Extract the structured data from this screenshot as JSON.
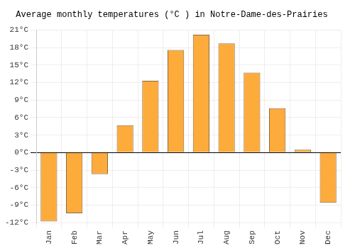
{
  "chart_data": {
    "type": "bar",
    "title": "Average monthly temperatures (°C ) in Notre-Dame-des-Prairies",
    "categories": [
      "Jan",
      "Feb",
      "Mar",
      "Apr",
      "May",
      "Jun",
      "Jul",
      "Aug",
      "Sep",
      "Oct",
      "Nov",
      "Dec"
    ],
    "values": [
      -11.8,
      -10.4,
      -3.7,
      4.7,
      12.3,
      17.6,
      20.2,
      18.7,
      13.7,
      7.6,
      0.5,
      -8.6
    ],
    "color": "#fdab3b",
    "ylim": [
      -12,
      21
    ],
    "yticks": [
      {
        "value": -12,
        "label": "-12°C"
      },
      {
        "value": -9,
        "label": "-9°C"
      },
      {
        "value": -6,
        "label": "-6°C"
      },
      {
        "value": -3,
        "label": "-3°C"
      },
      {
        "value": 0,
        "label": "0°C"
      },
      {
        "value": 3,
        "label": "3°C"
      },
      {
        "value": 6,
        "label": "6°C"
      },
      {
        "value": 9,
        "label": "9°C"
      },
      {
        "value": 12,
        "label": "12°C"
      },
      {
        "value": 15,
        "label": "15°C"
      },
      {
        "value": 18,
        "label": "18°C"
      },
      {
        "value": 21,
        "label": "21°C"
      }
    ],
    "grid": true
  }
}
